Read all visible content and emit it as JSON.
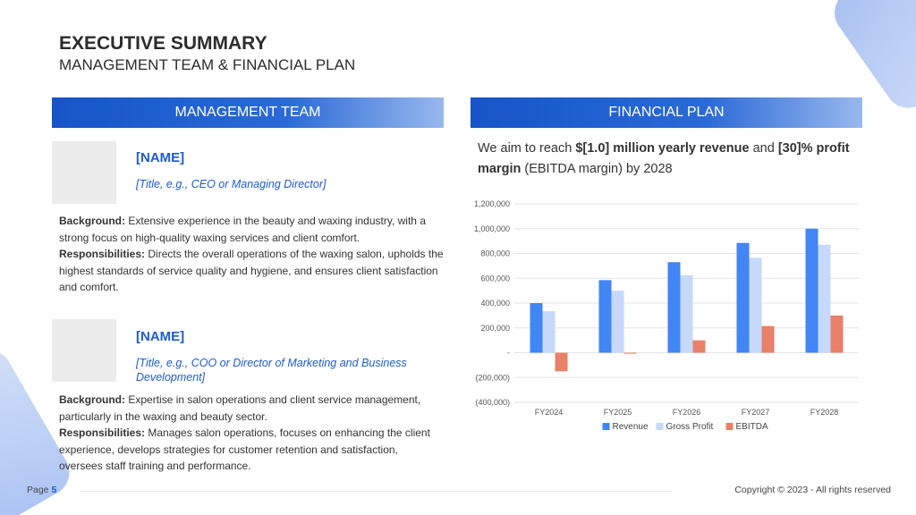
{
  "header": {
    "title": "EXECUTIVE SUMMARY",
    "subtitle": "MANAGEMENT TEAM & FINANCIAL PLAN"
  },
  "management": {
    "banner": "MANAGEMENT TEAM",
    "members": [
      {
        "name": "[NAME]",
        "title": "[Title, e.g., CEO or Managing Director]",
        "background_label": "Background:",
        "background": " Extensive experience in the beauty and waxing industry, with a strong focus on high-quality waxing services and client comfort.",
        "responsibilities_label": "Responsibilities:",
        "responsibilities": " Directs the overall operations of the waxing salon, upholds the highest standards of service quality and hygiene, and ensures client satisfaction and comfort."
      },
      {
        "name": "[NAME]",
        "title": "[Title, e.g., COO or Director of Marketing and Business Development]",
        "background_label": "Background:",
        "background": " Expertise in salon operations and client service management, particularly in the waxing and beauty sector.",
        "responsibilities_label": "Responsibilities:",
        "responsibilities": " Manages salon operations, focuses on enhancing the client experience, develops strategies for customer retention and satisfaction, oversees staff training and performance."
      }
    ]
  },
  "financial": {
    "banner": "FINANCIAL PLAN",
    "statement": {
      "pre": "We aim to reach ",
      "revenue_bold": "$[1.0] million yearly revenue",
      "mid": " and ",
      "margin_bold": "[30]% profit margin",
      "post": " (EBITDA margin) by 2028"
    }
  },
  "chart_data": {
    "type": "bar",
    "categories": [
      "FY2024",
      "FY2025",
      "FY2026",
      "FY2027",
      "FY2028"
    ],
    "series": [
      {
        "name": "Revenue",
        "color": "#4285f4",
        "values": [
          400000,
          585000,
          730000,
          885000,
          1000000
        ]
      },
      {
        "name": "Gross Profit",
        "color": "#c6d9fa",
        "values": [
          335000,
          500000,
          625000,
          765000,
          870000
        ]
      },
      {
        "name": "EBITDA",
        "color": "#e8806a",
        "values": [
          -150000,
          -8000,
          100000,
          215000,
          300000
        ]
      }
    ],
    "ylim": [
      -400000,
      1200000
    ],
    "yticks": [
      -400000,
      -200000,
      0,
      200000,
      400000,
      600000,
      800000,
      1000000,
      1200000
    ],
    "ytick_labels": [
      "(400,000)",
      "(200,000)",
      "-",
      "200,000",
      "400,000",
      "600,000",
      "800,000",
      "1,000,000",
      "1,200,000"
    ],
    "grid": true,
    "legend": "bottom"
  },
  "footer": {
    "page_label": "Page",
    "page_number": "5",
    "copyright": "Copyright © 2023 - All rights reserved"
  }
}
